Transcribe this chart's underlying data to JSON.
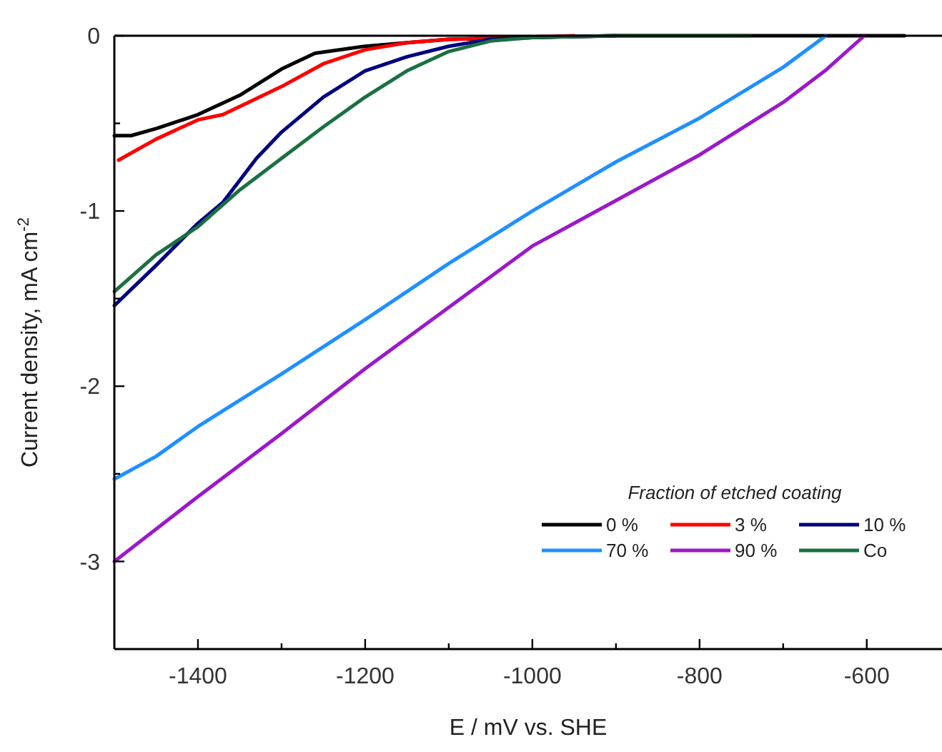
{
  "chart_data": {
    "type": "line",
    "xlabel": "E / mV vs. SHE",
    "ylabel": "Current density, mA cm$^{-2}$",
    "legend_title": "Fraction of etched coating",
    "legend": "bottom right",
    "grid": false,
    "marker": "none",
    "line_style": "solid",
    "xlim": [
      -1500,
      -510
    ],
    "ylim": [
      -3.5,
      0
    ],
    "xticks": [
      -1400,
      {
        "value": -1300,
        "label": null
      },
      -1200,
      {
        "value": -1100,
        "label": null
      },
      -1000,
      {
        "value": -900,
        "label": null
      },
      -800,
      {
        "value": -700,
        "label": null
      },
      -600
    ],
    "yticks": [
      0,
      {
        "value": -0.5,
        "label": null
      },
      -1,
      {
        "value": -1.5,
        "label": null
      },
      -2,
      {
        "value": -2.5,
        "label": null
      },
      -3
    ],
    "series": [
      {
        "name": "0 %",
        "color": "#000000",
        "x": [
          -1500,
          -1480,
          -1450,
          -1400,
          -1350,
          -1300,
          -1260,
          -1200,
          -1150,
          -1100,
          -1000,
          -900,
          -555
        ],
        "values": [
          -0.57,
          -0.57,
          -0.53,
          -0.45,
          -0.34,
          -0.19,
          -0.1,
          -0.06,
          -0.04,
          -0.02,
          -0.01,
          0,
          0
        ]
      },
      {
        "name": "3 %",
        "color": "#ff0000",
        "x": [
          -1495,
          -1450,
          -1400,
          -1370,
          -1300,
          -1250,
          -1200,
          -1150,
          -1100,
          -950
        ],
        "values": [
          -0.71,
          -0.59,
          -0.48,
          -0.45,
          -0.29,
          -0.16,
          -0.08,
          -0.04,
          -0.02,
          0
        ]
      },
      {
        "name": "10 %",
        "color": "#000080",
        "x": [
          -1500,
          -1450,
          -1400,
          -1370,
          -1330,
          -1300,
          -1250,
          -1200,
          -1150,
          -1100,
          -1050,
          -1000,
          -900
        ],
        "values": [
          -1.54,
          -1.31,
          -1.07,
          -0.95,
          -0.7,
          -0.55,
          -0.35,
          -0.2,
          -0.12,
          -0.06,
          -0.02,
          -0.01,
          0
        ]
      },
      {
        "name": "70 %",
        "color": "#1e90ff",
        "x": [
          -1500,
          -1450,
          -1400,
          -1300,
          -1200,
          -1100,
          -1000,
          -900,
          -800,
          -700,
          -649
        ],
        "values": [
          -2.53,
          -2.4,
          -2.23,
          -1.93,
          -1.62,
          -1.3,
          -1.0,
          -0.72,
          -0.47,
          -0.18,
          0
        ]
      },
      {
        "name": "90 %",
        "color": "#9b19c8",
        "x": [
          -1500,
          -1400,
          -1300,
          -1200,
          -1100,
          -1000,
          -900,
          -800,
          -700,
          -650,
          -603
        ],
        "values": [
          -3.0,
          -2.63,
          -2.27,
          -1.9,
          -1.55,
          -1.2,
          -0.94,
          -0.68,
          -0.38,
          -0.2,
          0
        ]
      },
      {
        "name": "Co",
        "color": "#1a7040",
        "x": [
          -1500,
          -1450,
          -1400,
          -1350,
          -1300,
          -1250,
          -1200,
          -1150,
          -1100,
          -1050,
          -1000,
          -900,
          -740
        ],
        "values": [
          -1.46,
          -1.25,
          -1.09,
          -0.88,
          -0.7,
          -0.52,
          -0.35,
          -0.2,
          -0.09,
          -0.03,
          -0.01,
          0,
          0
        ]
      }
    ]
  }
}
